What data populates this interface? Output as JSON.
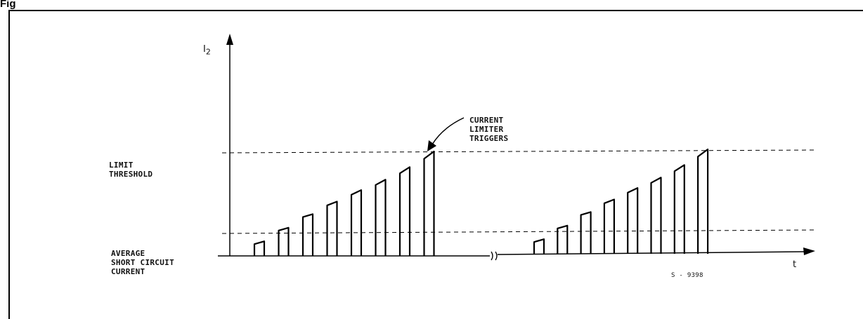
{
  "figure_label": "Fig",
  "y_axis": {
    "symbol": "I",
    "subscript": "2"
  },
  "x_axis": {
    "symbol": "t"
  },
  "labels": {
    "limit_threshold": [
      "LIMIT",
      "THRESHOLD"
    ],
    "average_current": [
      "AVERAGE",
      "SHORT CIRCUIT",
      "CURRENT"
    ],
    "trigger": [
      "CURRENT",
      "LIMITER",
      "TRIGGERS"
    ],
    "code": "S - 9398"
  },
  "pulse_levels": [
    0.14,
    0.27,
    0.4,
    0.52,
    0.63,
    0.73,
    0.85,
    1.0
  ]
}
